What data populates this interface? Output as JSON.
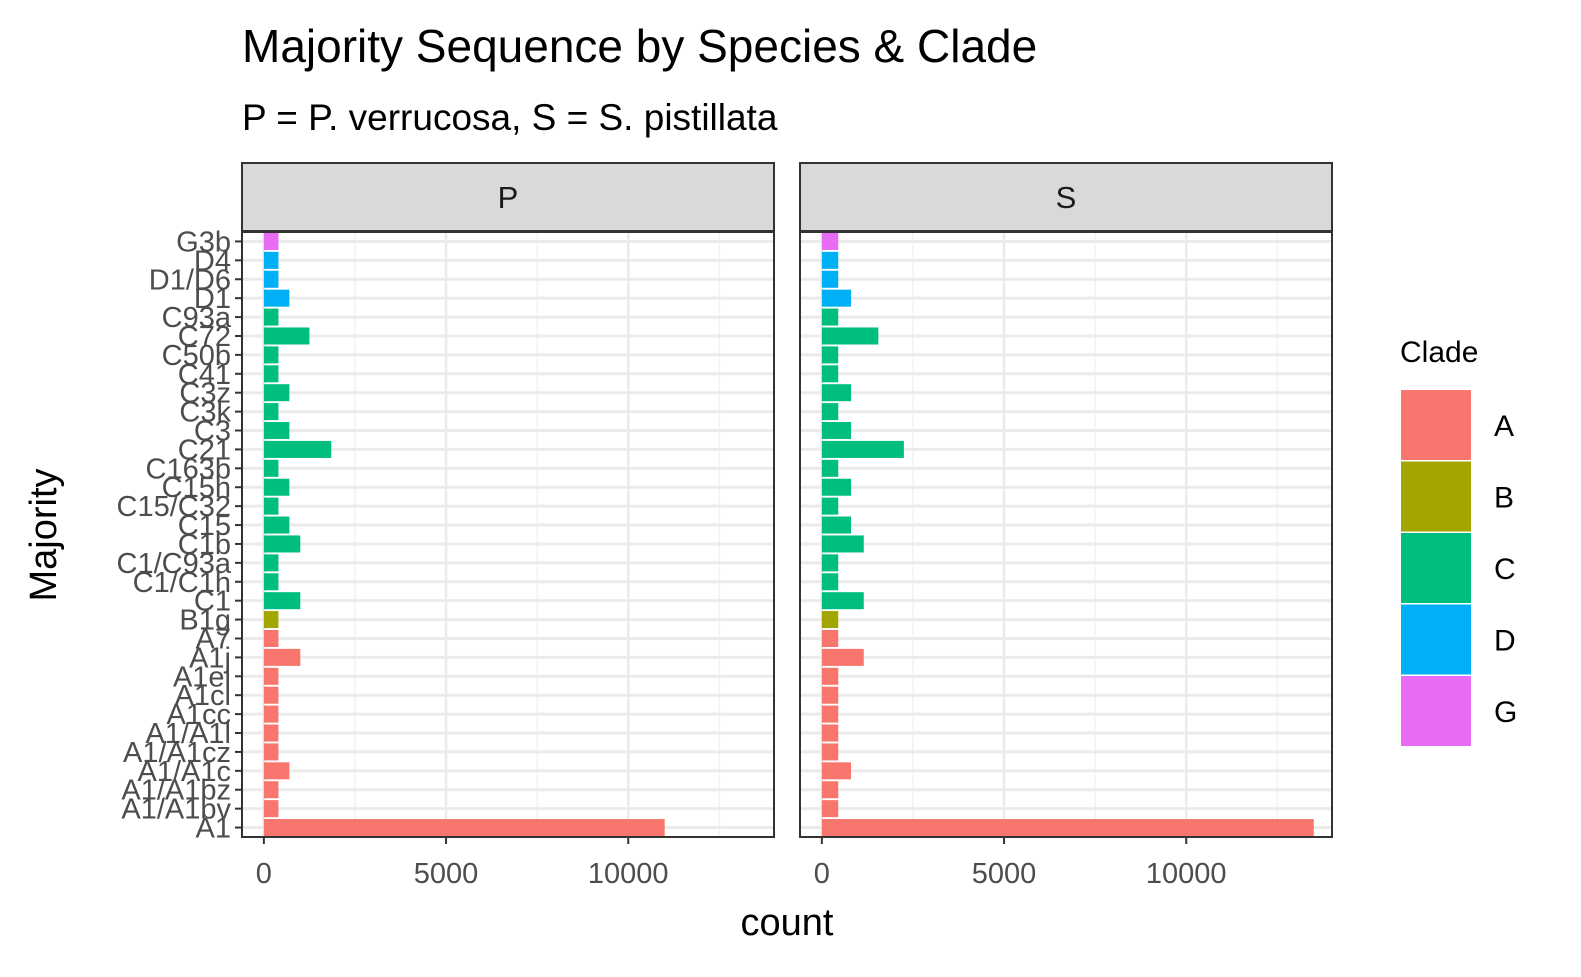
{
  "chart_data": {
    "type": "bar",
    "orientation": "horizontal",
    "title": "Majority Sequence by Species & Clade",
    "subtitle": "P = P. verrucosa, S = S. pistillata",
    "xlabel": "count",
    "ylabel": "Majority",
    "xticks": [
      0,
      5000,
      10000
    ],
    "xlim": [
      -600,
      14000
    ],
    "grid": true,
    "legend": {
      "title": "Clade",
      "position": "right",
      "entries": [
        "A",
        "B",
        "C",
        "D",
        "G"
      ]
    },
    "colors": {
      "A": "#F8766D",
      "B": "#A3A500",
      "C": "#00BF7D",
      "D": "#00B0F6",
      "G": "#E76BF3"
    },
    "categories": [
      "G3b",
      "D4",
      "D1/D6",
      "D1",
      "C93a",
      "C72",
      "C50b",
      "C41",
      "C3z",
      "C3k",
      "C3",
      "C21",
      "C163b",
      "C15h",
      "C15/C32",
      "C15",
      "C1b",
      "C1/C93a",
      "C1/C1h",
      "C1",
      "B1g",
      "A7",
      "A1j",
      "A1el",
      "A1cl",
      "A1cc",
      "A1/A1l",
      "A1/A1cz",
      "A1/A1c",
      "A1/A1bz",
      "A1/A1bv",
      "A1"
    ],
    "category_clade": [
      "G",
      "D",
      "D",
      "D",
      "C",
      "C",
      "C",
      "C",
      "C",
      "C",
      "C",
      "C",
      "C",
      "C",
      "C",
      "C",
      "C",
      "C",
      "C",
      "C",
      "B",
      "A",
      "A",
      "A",
      "A",
      "A",
      "A",
      "A",
      "A",
      "A",
      "A",
      "A"
    ],
    "panels": [
      {
        "name": "P",
        "values": [
          400,
          400,
          400,
          700,
          400,
          1250,
          400,
          400,
          700,
          400,
          700,
          1850,
          400,
          700,
          400,
          700,
          1000,
          400,
          400,
          1000,
          400,
          400,
          1000,
          400,
          400,
          400,
          400,
          400,
          700,
          400,
          400,
          11000
        ]
      },
      {
        "name": "S",
        "values": [
          450,
          450,
          450,
          800,
          450,
          1550,
          450,
          450,
          800,
          450,
          800,
          2250,
          450,
          800,
          450,
          800,
          1150,
          450,
          450,
          1150,
          450,
          450,
          1150,
          450,
          450,
          450,
          450,
          450,
          800,
          450,
          450,
          13500
        ]
      }
    ]
  }
}
